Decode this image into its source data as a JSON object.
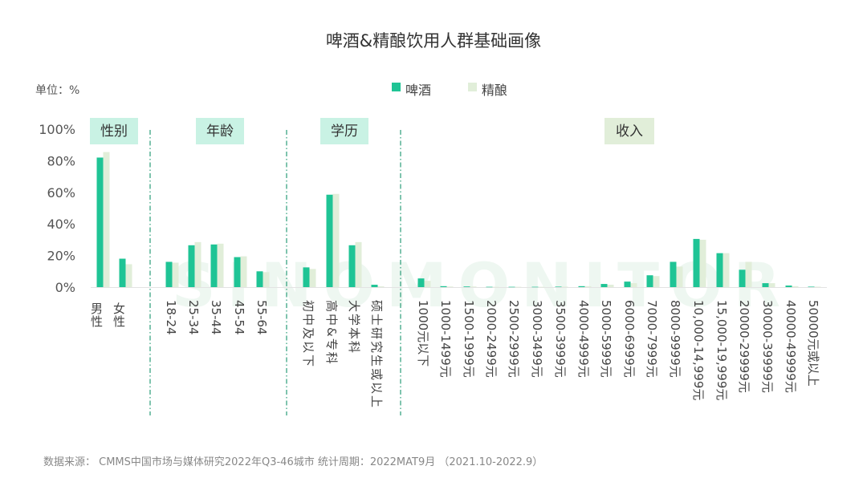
{
  "header": {
    "title": "啤酒&精酿饮用人群基础画像",
    "unit": "单位：%"
  },
  "footer": {
    "source": "数据来源：  CMMS中国市场与媒体研究2022年Q3-46城市  统计周期：2022MAT9月  （2021.10-2022.9）"
  },
  "watermark": "SINOMONITOR",
  "colors": {
    "beer": "#1fc495",
    "craft": "#e1eed9",
    "divider": "#2a9d78",
    "header_mint": "#c9f2e4",
    "header_green": "#e1eed9"
  },
  "chart_data": {
    "type": "bar",
    "title": "啤酒&精酿饮用人群基础画像",
    "ylabel": "单位：%",
    "ylim": [
      0,
      100
    ],
    "yticks": [
      "0%",
      "20%",
      "40%",
      "60%",
      "80%",
      "100%"
    ],
    "legend": {
      "position": "top-center"
    },
    "groups": [
      {
        "label": "性别",
        "style": "mint",
        "categories": [
          "男性",
          "女性"
        ]
      },
      {
        "label": "年龄",
        "style": "mint",
        "categories": [
          "18-24",
          "25-34",
          "35-44",
          "45-54",
          "55-64"
        ]
      },
      {
        "label": "学历",
        "style": "mint",
        "categories": [
          "初中及以下",
          "高中&专科",
          "大学本科",
          "硕士研究生或以上"
        ]
      },
      {
        "label": "收入",
        "style": "green",
        "categories": [
          "1000元以下",
          "1000-1499元",
          "1500-1999元",
          "2000-2499元",
          "2500-2999元",
          "3000-3499元",
          "3500-3999元",
          "4000-4999元",
          "5000-5999元",
          "6000-6999元",
          "7000-7999元",
          "8000-9999元",
          "10,000-14,999元",
          "15,000-19,999元",
          "20000-29999元",
          "30000-39999元",
          "40000-49999元",
          "50000元或以上"
        ]
      }
    ],
    "series": [
      {
        "name": "啤酒",
        "values": [
          82,
          18,
          16,
          26.5,
          27,
          19,
          10,
          12.5,
          58.5,
          26.5,
          1.5,
          5.5,
          0.6,
          0.4,
          0.2,
          0.2,
          0.2,
          0.3,
          0.6,
          2,
          3.5,
          7.5,
          16,
          30.5,
          21.5,
          11,
          2.5,
          1,
          0.3
        ]
      },
      {
        "name": "精酿",
        "values": [
          85.5,
          14.5,
          15.5,
          28.5,
          27.5,
          19.5,
          9.5,
          11.5,
          59,
          28.5,
          0.5,
          4,
          0.4,
          0.4,
          0.2,
          0.2,
          0.2,
          0.3,
          0.6,
          1.5,
          2.5,
          7,
          13,
          30,
          21.5,
          16,
          2.5,
          0.6,
          0.3
        ]
      }
    ]
  }
}
